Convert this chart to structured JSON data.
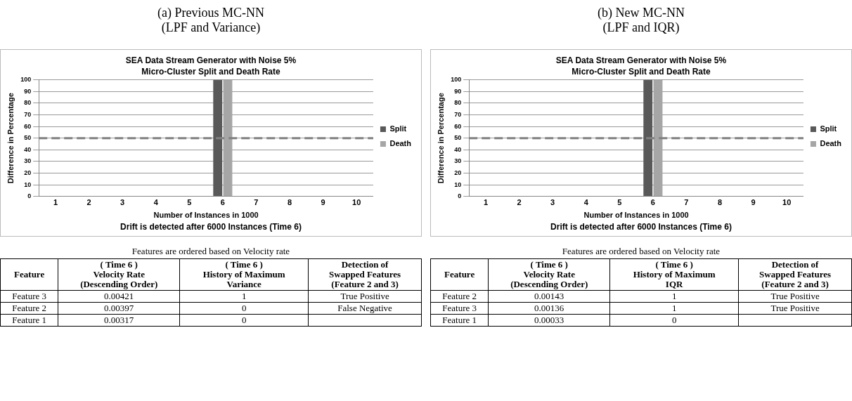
{
  "chart_data": [
    {
      "type": "bar",
      "title": "SEA Data Stream Generator with Noise 5%",
      "subtitle": "Micro-Cluster Split and Death Rate",
      "xlabel": "Number of Instances in 1000",
      "ylabel": "Difference in Percentage",
      "categories": [
        "1",
        "2",
        "3",
        "4",
        "5",
        "6",
        "7",
        "8",
        "9",
        "10"
      ],
      "series": [
        {
          "name": "Split",
          "color": "#595959",
          "values": [
            0,
            0,
            0,
            0,
            0,
            100,
            0,
            0,
            0,
            0
          ]
        },
        {
          "name": "Death",
          "color": "#a6a6a6",
          "values": [
            0,
            0,
            0,
            0,
            0,
            100,
            0,
            0,
            0,
            0
          ]
        }
      ],
      "ylim": [
        0,
        100
      ],
      "yticks": [
        0,
        10,
        20,
        30,
        40,
        50,
        60,
        70,
        80,
        90,
        100
      ],
      "grid": "y",
      "legend": "right",
      "ref_lines": [
        {
          "axis": "y",
          "value": 50,
          "color": "#808080",
          "line_style": "dashed"
        }
      ],
      "annotations": [
        "(a) Previous MC-NN\n(LPF and Variance)",
        "Drift is detected after 6000 Instances (Time 6)"
      ]
    },
    {
      "type": "bar",
      "title": "SEA Data Stream Generator with Noise 5%",
      "subtitle": "Micro-Cluster Split and Death Rate",
      "xlabel": "Number of Instances in 1000",
      "ylabel": "Difference in Percentage",
      "categories": [
        "1",
        "2",
        "3",
        "4",
        "5",
        "6",
        "7",
        "8",
        "9",
        "10"
      ],
      "series": [
        {
          "name": "Split",
          "color": "#595959",
          "values": [
            0,
            0,
            0,
            0,
            0,
            100,
            0,
            0,
            0,
            0
          ]
        },
        {
          "name": "Death",
          "color": "#a6a6a6",
          "values": [
            0,
            0,
            0,
            0,
            0,
            100,
            0,
            0,
            0,
            0
          ]
        }
      ],
      "ylim": [
        0,
        100
      ],
      "yticks": [
        0,
        10,
        20,
        30,
        40,
        50,
        60,
        70,
        80,
        90,
        100
      ],
      "grid": "y",
      "legend": "right",
      "ref_lines": [
        {
          "axis": "y",
          "value": 50,
          "color": "#808080",
          "line_style": "dashed"
        }
      ],
      "annotations": [
        "(b) New MC-NN\n(LPF and IQR)",
        "Drift is detected after 6000 Instances (Time 6)"
      ]
    },
    {
      "type": "other",
      "title": "Features are ordered based on Velocity rate",
      "categories": [
        "Feature",
        "( Time 6 )\nVelocity Rate\n(Descending Order)",
        "( Time 6 )\nHistory of Maximum\nVariance",
        "Detection of\nSwapped Features\n(Feature 2 and 3)"
      ],
      "annotations": [
        "Feature 3",
        "0.00421",
        "1",
        "True Positive",
        "Feature 2",
        "0.00397",
        "0",
        "False Negative",
        "Feature 1",
        "0.00317",
        "0"
      ]
    },
    {
      "type": "other",
      "title": "Features are ordered based on Velocity rate",
      "categories": [
        "Feature",
        "( Time 6 )\nVelocity Rate\n(Descending Order)",
        "( Time 6 )\nHistory of Maximum\nIQR",
        "Detection of\nSwapped Features\n(Feature 2 and 3)"
      ],
      "annotations": [
        "Feature 2",
        "0.00143",
        "1",
        "True Positive",
        "Feature 3",
        "0.00136",
        "1",
        "True Positive",
        "Feature 1",
        "0.00033",
        "0"
      ]
    }
  ]
}
